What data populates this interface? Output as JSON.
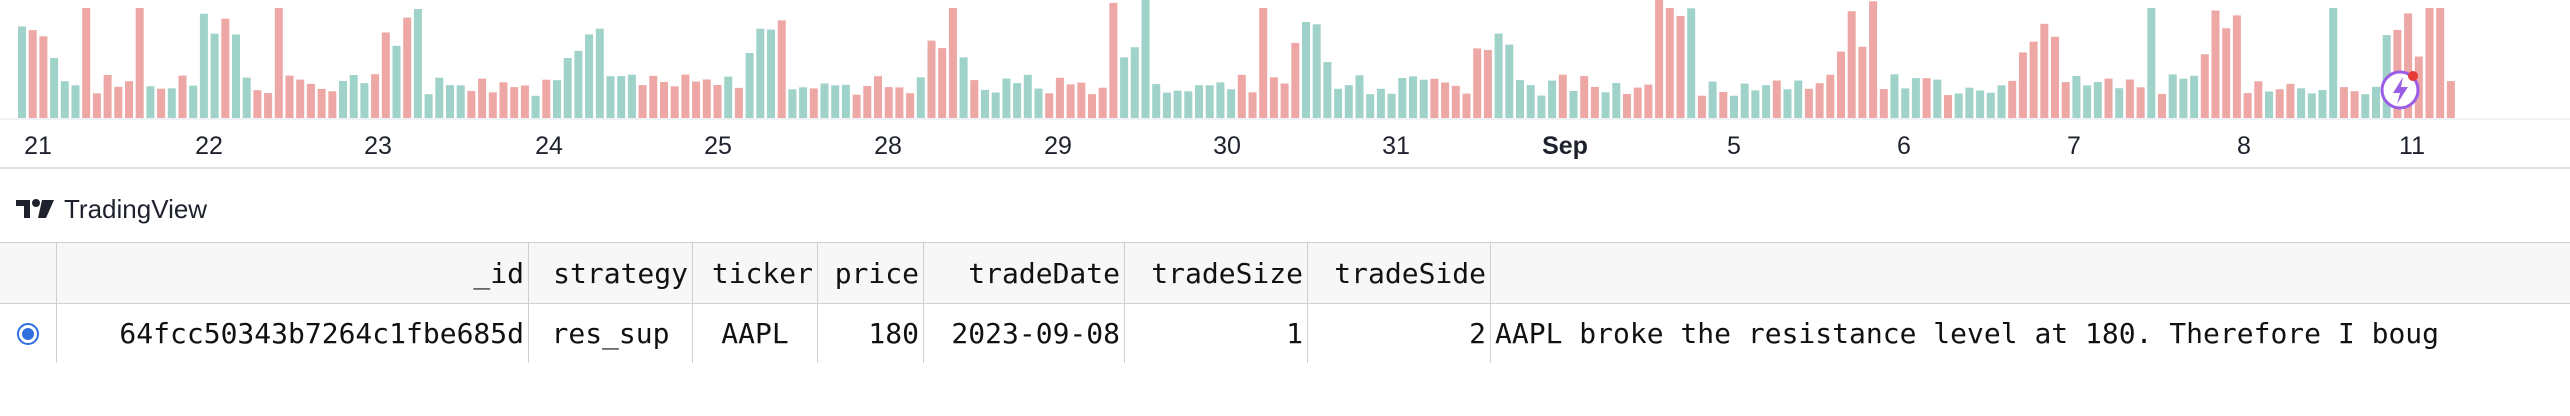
{
  "colors": {
    "up": "#9fd3c9",
    "down": "#eda7a5",
    "axis_text": "#1e222d",
    "radio": "#2f6fde",
    "lightning_border": "#9b5de5",
    "lightning_dot": "#e53935"
  },
  "chart": {
    "x_axis_labels": [
      {
        "label": "21",
        "bold": false
      },
      {
        "label": "22",
        "bold": false
      },
      {
        "label": "23",
        "bold": false
      },
      {
        "label": "24",
        "bold": false
      },
      {
        "label": "25",
        "bold": false
      },
      {
        "label": "28",
        "bold": false
      },
      {
        "label": "29",
        "bold": false
      },
      {
        "label": "30",
        "bold": false
      },
      {
        "label": "31",
        "bold": false
      },
      {
        "label": "Sep",
        "bold": true
      },
      {
        "label": "5",
        "bold": false
      },
      {
        "label": "6",
        "bold": false
      },
      {
        "label": "7",
        "bold": false
      },
      {
        "label": "8",
        "bold": false
      },
      {
        "label": "11",
        "bold": false
      }
    ],
    "lightning_icon": "lightning-icon"
  },
  "branding": {
    "logo_text": "TradingView",
    "logo_icon": "tradingview-logo-icon"
  },
  "table": {
    "columns": [
      "_id",
      "strategy",
      "ticker",
      "price",
      "tradeDate",
      "tradeSize",
      "tradeSide"
    ],
    "row": {
      "selected": true,
      "_id": "64fcc50343b7264c1fbe685d",
      "strategy": "res_sup",
      "ticker": "AAPL",
      "price": "180",
      "tradeDate": "2023-09-08",
      "tradeSize": "1",
      "tradeSide": "2",
      "extra": "AAPL broke the resistance level at 180. Therefore I boug"
    }
  }
}
